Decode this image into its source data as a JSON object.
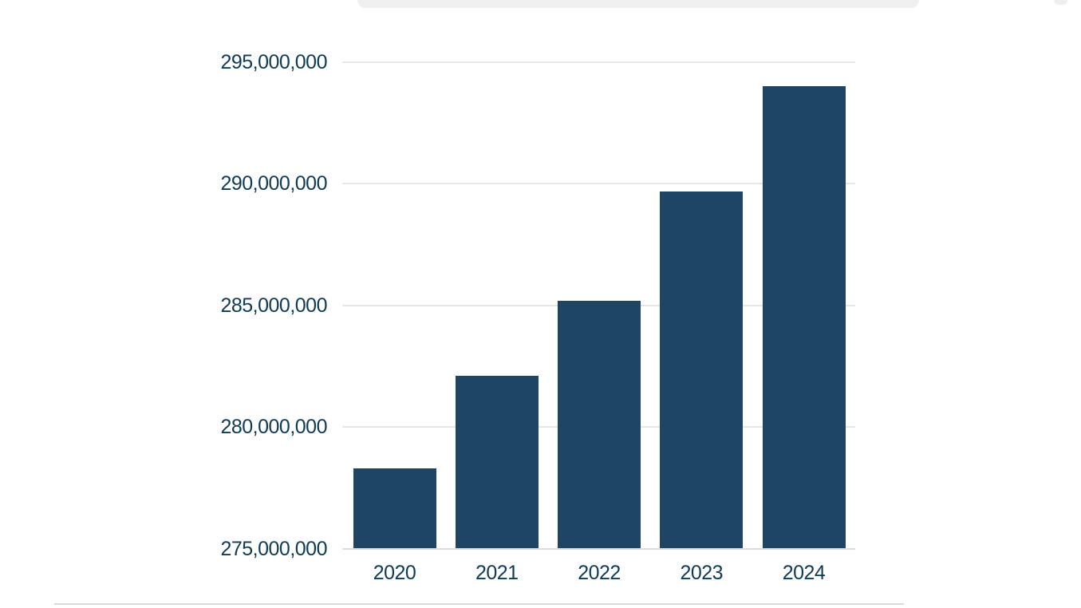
{
  "decorations": {
    "top_card_edge_color": "#f0f0f0",
    "top_card_edge_corner_color": "#efefef",
    "bottom_divider_color": "#d9d9d9"
  },
  "chart_data": {
    "type": "bar",
    "title": "",
    "categories": [
      "2020",
      "2021",
      "2022",
      "2023",
      "2024"
    ],
    "values": [
      278300000,
      282100000,
      285200000,
      289700000,
      294000000
    ],
    "series_name": "",
    "xlabel": "",
    "ylabel": "",
    "ylim": [
      275000000,
      295000000
    ],
    "y_ticks": [
      275000000,
      280000000,
      285000000,
      290000000,
      295000000
    ],
    "y_tick_labels": [
      "275,000,000",
      "280,000,000",
      "285,000,000",
      "290,000,000",
      "295,000,000"
    ],
    "grid": true,
    "legend": "none",
    "bar_color": "#1e4564",
    "label_color": "#0e3a55",
    "gridline_color": "#e6e6e6",
    "baseline_color": "#dcdcdc"
  }
}
